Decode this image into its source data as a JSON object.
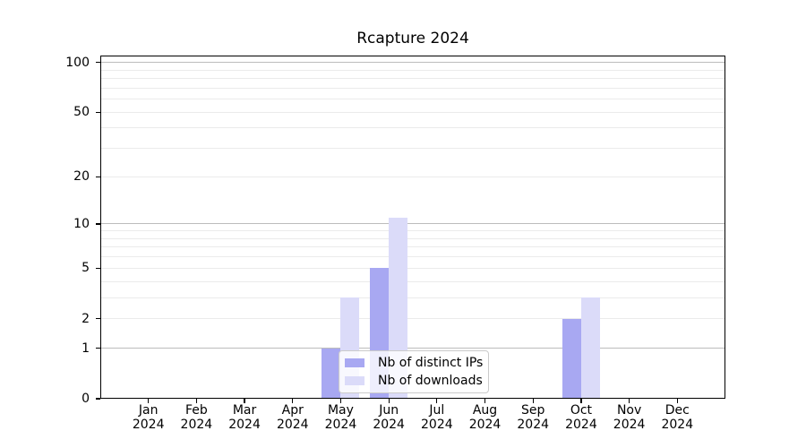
{
  "chart_data": {
    "type": "bar",
    "title": "Rcapture 2024",
    "x_months": [
      "Jan",
      "Feb",
      "Mar",
      "Apr",
      "May",
      "Jun",
      "Jul",
      "Aug",
      "Sep",
      "Oct",
      "Nov",
      "Dec"
    ],
    "x_year": "2024",
    "series": [
      {
        "name": "Nb of distinct IPs",
        "color": "#a8a8f2",
        "values": [
          0,
          0,
          0,
          0,
          1,
          5,
          0,
          0,
          0,
          2,
          0,
          0
        ]
      },
      {
        "name": "Nb of downloads",
        "color": "#dbdbf9",
        "values": [
          0,
          0,
          0,
          0,
          3,
          11,
          0,
          0,
          0,
          3,
          0,
          0
        ]
      }
    ],
    "y_axis": {
      "scale": "log1p",
      "ticks": [
        0,
        1,
        2,
        5,
        10,
        20,
        50,
        100
      ],
      "max": 110,
      "grid_major": [
        1,
        10,
        100
      ],
      "grid_minor": [
        2,
        3,
        4,
        5,
        6,
        7,
        8,
        9,
        20,
        30,
        40,
        50,
        60,
        70,
        80,
        90
      ]
    },
    "xlabel": "",
    "ylabel": "",
    "grid": true,
    "legend_position": "lower center"
  }
}
